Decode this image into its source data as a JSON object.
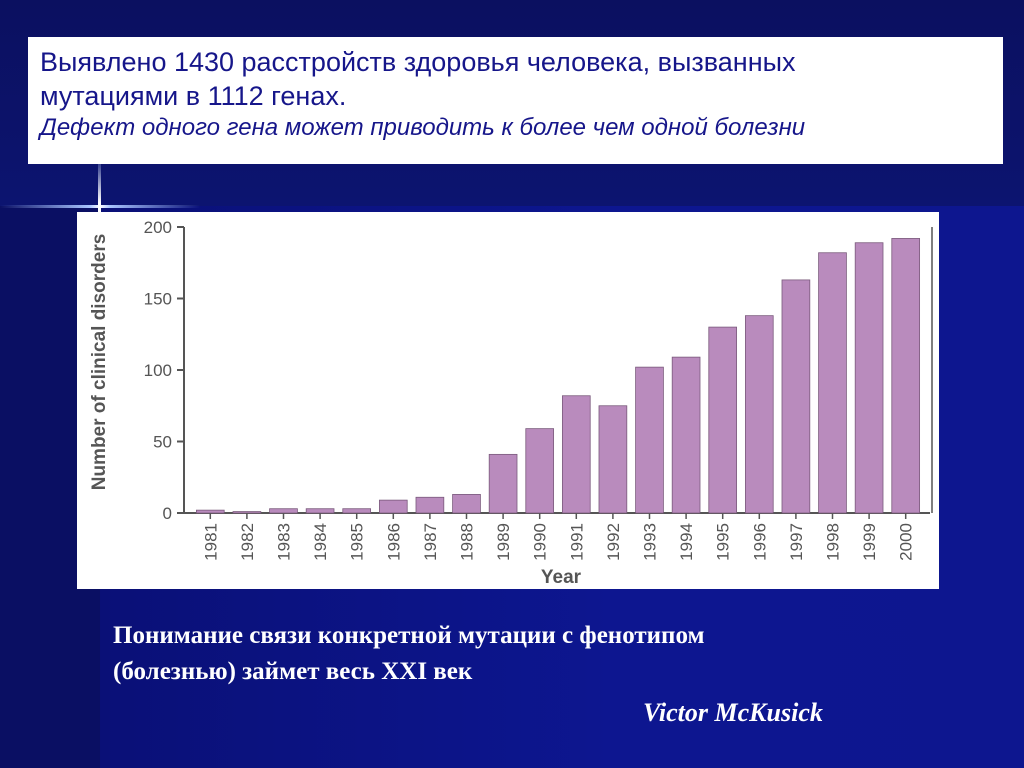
{
  "slide": {
    "title_line1": "Выявлено 1430 расстройств здоровья человека, вызванных",
    "title_line2": "мутациями в 1112 генах.",
    "title_line3": "Дефект одного гена может приводить к более чем одной болезни",
    "caption_line1": "Понимание связи конкретной мутации с фенотипом",
    "caption_line2": "(болезнью) займет весь XXI век",
    "author": "Victor McKusick"
  },
  "colors": {
    "bar": "#b98bbd",
    "bar_stroke": "#7a5a7c",
    "axis": "#555555",
    "title_text": "#16168a",
    "background": "#0d168f"
  },
  "chart_data": {
    "type": "bar",
    "xlabel": "Year",
    "ylabel": "Number of clinical disorders",
    "ylim": [
      0,
      200
    ],
    "yticks": [
      0,
      50,
      100,
      150,
      200
    ],
    "grid": false,
    "categories": [
      "1981",
      "1982",
      "1983",
      "1984",
      "1985",
      "1986",
      "1987",
      "1988",
      "1989",
      "1990",
      "1991",
      "1992",
      "1993",
      "1994",
      "1995",
      "1996",
      "1997",
      "1998",
      "1999",
      "2000"
    ],
    "values": [
      2,
      1,
      3,
      3,
      3,
      9,
      11,
      13,
      41,
      59,
      82,
      75,
      102,
      109,
      130,
      138,
      163,
      182,
      189,
      192
    ]
  }
}
